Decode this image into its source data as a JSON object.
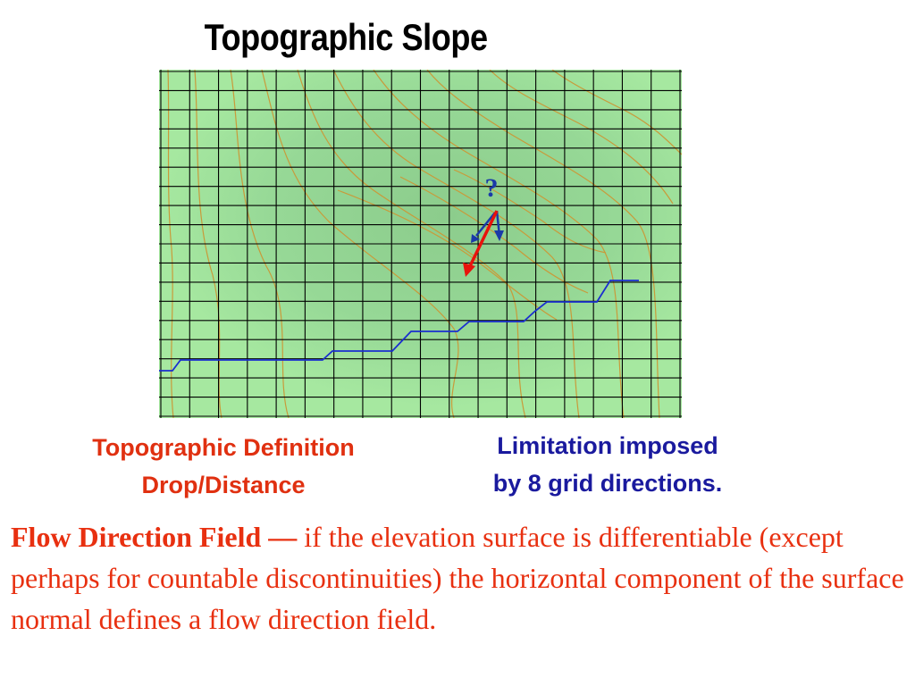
{
  "title": "Topographic Slope",
  "map": {
    "question_mark": "?",
    "colors": {
      "grid": "#000000",
      "contour": "#c99a3a",
      "stream": "#1a2ed0",
      "arrow_red": "#e8120c",
      "arrow_blue": "#1a3aa8",
      "fill_light": "#a6e8a0",
      "fill_mid": "#98d69a",
      "fill_dark": "#8ccc8c"
    }
  },
  "captions": {
    "left_line1": "Topographic Definition",
    "left_line2": "Drop/Distance",
    "right_line1": "Limitation imposed",
    "right_line2": "by 8 grid directions."
  },
  "body": {
    "lead": "Flow Direction Field —",
    "text": " if the elevation surface is differentiable (except perhaps for countable discontinuities) the horizontal component of the surface normal defines a flow direction field."
  }
}
